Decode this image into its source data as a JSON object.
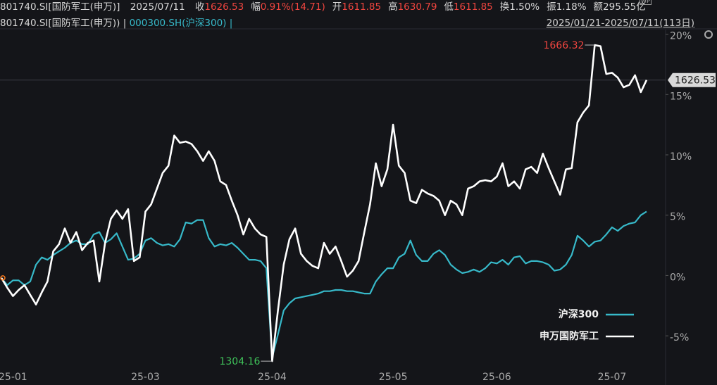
{
  "header": {
    "code": "801740.SI[国防军工(申万)]",
    "date": "2025/07/11",
    "quotes": [
      {
        "label": "收",
        "value": "1626.53",
        "color": "#f0453f"
      },
      {
        "label": "幅",
        "value": "0.91%(14.71)",
        "color": "#f0453f"
      },
      {
        "label": "开",
        "value": "1611.85",
        "color": "#f0453f"
      },
      {
        "label": "高",
        "value": "1630.79",
        "color": "#f0453f"
      },
      {
        "label": "低",
        "value": "1611.85",
        "color": "#f0453f"
      },
      {
        "label": "换",
        "value": "1.50%",
        "color": "#d6d6d6"
      },
      {
        "label": "振",
        "value": "1.18%",
        "color": "#d6d6d6"
      },
      {
        "label": "额",
        "value": "295.55亿",
        "color": "#d6d6d6"
      }
    ],
    "badge": "WP",
    "series_labels": [
      "801740.SI[国防军工(申万)) |",
      "000300.SH(沪深300) |"
    ],
    "range": "2025/01/21-2025/07/11(113日)"
  },
  "chart_data": {
    "type": "line",
    "grid": false,
    "legend": "lower-right",
    "categories": [
      null,
      null,
      "25-01",
      null,
      null,
      null,
      null,
      null,
      null,
      null,
      null,
      null,
      null,
      null,
      null,
      null,
      null,
      null,
      null,
      null,
      null,
      null,
      null,
      null,
      null,
      "25-03",
      null,
      null,
      null,
      null,
      null,
      null,
      null,
      null,
      null,
      null,
      null,
      null,
      null,
      null,
      null,
      null,
      null,
      null,
      null,
      null,
      null,
      "25-04",
      null,
      null,
      null,
      null,
      null,
      null,
      null,
      null,
      null,
      null,
      null,
      null,
      null,
      null,
      null,
      null,
      null,
      null,
      null,
      null,
      "25-05",
      null,
      null,
      null,
      null,
      null,
      null,
      null,
      null,
      null,
      null,
      null,
      null,
      null,
      null,
      null,
      null,
      null,
      "25-06",
      null,
      null,
      null,
      null,
      null,
      null,
      null,
      null,
      null,
      null,
      null,
      null,
      null,
      null,
      null,
      null,
      null,
      null,
      null,
      "25-07",
      null,
      null,
      null,
      null,
      null,
      null
    ],
    "ylim": [
      -7.5,
      20.5
    ],
    "yticks": [
      {
        "value": -5,
        "label": "-5%"
      },
      {
        "value": 0,
        "label": "0%"
      },
      {
        "value": 5,
        "label": "5%"
      },
      {
        "value": 10,
        "label": "10%"
      },
      {
        "value": 15,
        "label": "15%"
      },
      {
        "value": 20,
        "label": "20%"
      }
    ],
    "series": [
      {
        "name": "沪深300",
        "color": "#37b9c9",
        "values": [
          -0.2,
          -0.8,
          -0.4,
          -0.4,
          -0.8,
          -0.5,
          0.9,
          1.5,
          1.3,
          1.7,
          2.0,
          2.3,
          2.7,
          2.9,
          2.6,
          2.6,
          3.4,
          3.6,
          2.7,
          3.0,
          3.5,
          2.4,
          1.3,
          1.4,
          1.8,
          2.9,
          3.1,
          2.7,
          2.5,
          2.6,
          2.4,
          3.0,
          4.4,
          4.3,
          4.6,
          4.6,
          3.1,
          2.4,
          2.6,
          2.5,
          2.7,
          2.3,
          1.8,
          1.3,
          1.3,
          1.2,
          0.6,
          -6.8,
          -4.9,
          -2.9,
          -2.3,
          -1.9,
          -1.8,
          -1.7,
          -1.6,
          -1.5,
          -1.3,
          -1.3,
          -1.2,
          -1.2,
          -1.3,
          -1.3,
          -1.4,
          -1.5,
          -1.5,
          -0.5,
          0.1,
          0.6,
          0.6,
          1.5,
          1.8,
          2.9,
          1.7,
          1.2,
          1.2,
          1.8,
          2.1,
          1.7,
          0.9,
          0.5,
          0.2,
          0.3,
          0.5,
          0.3,
          0.6,
          1.1,
          1.0,
          1.3,
          0.9,
          1.5,
          1.6,
          1.0,
          1.2,
          1.2,
          1.1,
          0.9,
          0.4,
          0.5,
          0.9,
          1.7,
          3.3,
          2.9,
          2.4,
          2.8,
          2.9,
          3.4,
          4.0,
          3.7,
          4.1,
          4.3,
          4.4,
          5.0,
          5.3
        ]
      },
      {
        "name": "申万国防军工",
        "color": "#ffffff",
        "values": [
          -0.2,
          -1.0,
          -1.7,
          -1.2,
          -0.8,
          -1.6,
          -2.4,
          -1.4,
          -0.5,
          2.0,
          2.6,
          3.9,
          2.7,
          3.6,
          2.1,
          2.7,
          2.9,
          -0.5,
          2.7,
          4.7,
          5.4,
          4.7,
          5.5,
          1.2,
          1.5,
          5.3,
          5.9,
          7.2,
          8.5,
          9.1,
          11.6,
          11.0,
          11.1,
          10.9,
          10.3,
          9.5,
          10.3,
          9.5,
          7.8,
          7.5,
          6.2,
          5.0,
          3.4,
          4.7,
          3.9,
          3.4,
          3.2,
          -7.1,
          -2.9,
          0.9,
          3.0,
          3.9,
          1.8,
          1.2,
          0.8,
          0.6,
          2.7,
          1.8,
          2.4,
          1.2,
          -0.1,
          0.4,
          1.2,
          3.6,
          5.9,
          9.3,
          7.4,
          8.8,
          12.5,
          9.1,
          8.5,
          6.2,
          6.0,
          7.1,
          6.8,
          6.6,
          6.2,
          5.0,
          6.2,
          5.9,
          5.0,
          7.2,
          7.4,
          7.8,
          7.9,
          7.8,
          8.2,
          9.3,
          7.4,
          7.8,
          7.2,
          8.8,
          9.0,
          8.5,
          10.1,
          8.9,
          7.8,
          6.7,
          8.8,
          8.9,
          12.7,
          13.5,
          14.1,
          19.1,
          19.0,
          16.7,
          16.8,
          16.4,
          15.6,
          15.8,
          16.6,
          15.2,
          16.2
        ]
      }
    ],
    "annotations": [
      {
        "text": "1666.32",
        "color": "#f0453f"
      },
      {
        "text": "1304.16",
        "color": "#3fc25a"
      },
      {
        "text": "1626.53",
        "color": "#1a1a1a"
      }
    ]
  }
}
